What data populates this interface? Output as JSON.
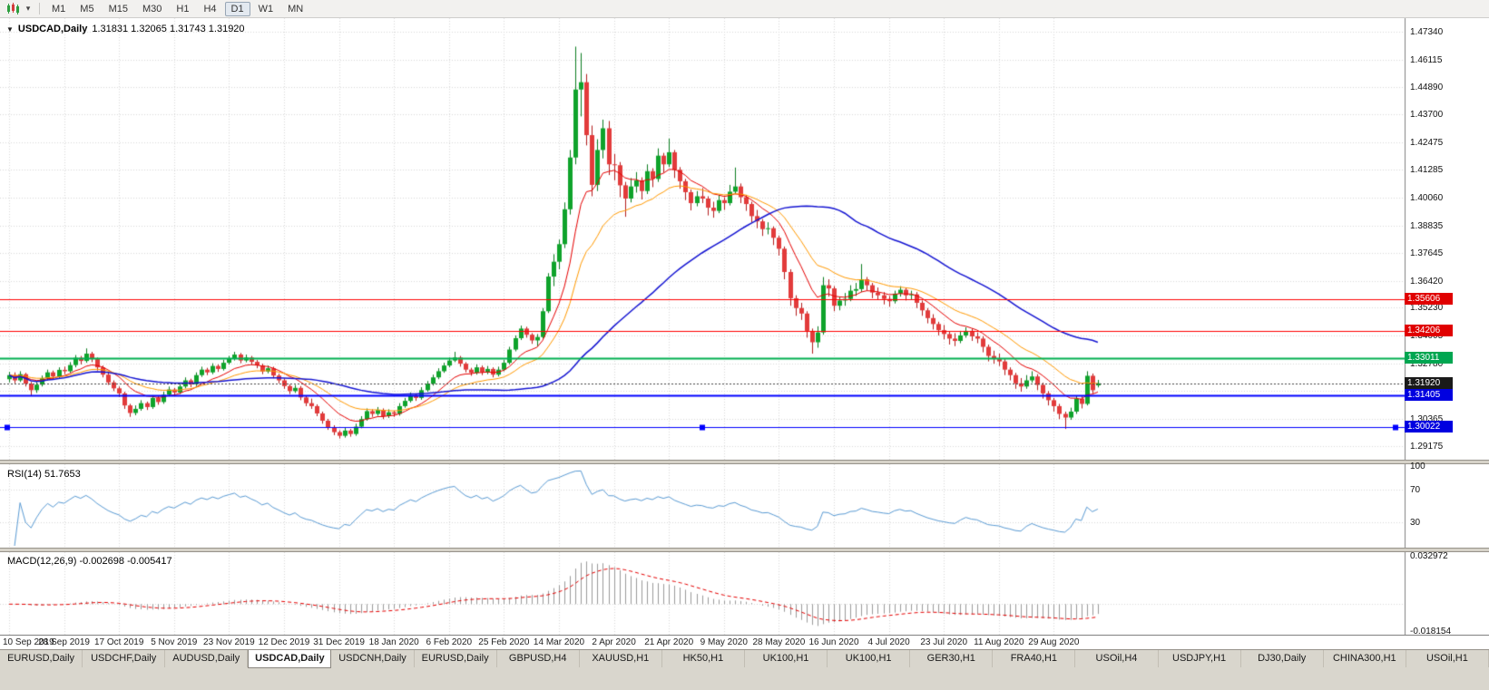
{
  "toolbar": {
    "chart_type_icon": "candlestick-chart-icon",
    "dropdown_glyph": "▾",
    "periods": [
      "M1",
      "M5",
      "M15",
      "M30",
      "H1",
      "H4",
      "D1",
      "W1",
      "MN"
    ],
    "active_period": "D1"
  },
  "chart": {
    "collapse_icon": "▼",
    "title": "USDCAD,Daily",
    "ohlc": "1.31831 1.32065 1.31743 1.31920"
  },
  "price_axis": {
    "labels": [
      "1.47340",
      "1.46115",
      "1.44890",
      "1.43700",
      "1.42475",
      "1.41285",
      "1.40060",
      "1.38835",
      "1.37645",
      "1.36420",
      "1.35230",
      "1.34005",
      "1.32780",
      "1.31590",
      "1.30365",
      "1.29175"
    ]
  },
  "price_tags": [
    {
      "text": "1.35606",
      "price": 1.35606,
      "color": "#e00000"
    },
    {
      "text": "1.34206",
      "price": 1.34206,
      "color": "#e00000"
    },
    {
      "text": "1.33011",
      "price": 1.33011,
      "color": "#00a651"
    },
    {
      "text": "1.31920",
      "price": 1.3192,
      "color": "#1a1a1a"
    },
    {
      "text": "1.31405",
      "price": 1.31405,
      "color": "#0000e0"
    },
    {
      "text": "1.30022",
      "price": 1.30022,
      "color": "#0000e0"
    }
  ],
  "sr_lines": [
    {
      "price": 1.35606,
      "color": "#ff0000",
      "width": 1,
      "selected": false
    },
    {
      "price": 1.34206,
      "color": "#ff0000",
      "width": 1,
      "selected": false
    },
    {
      "price": 1.33011,
      "color": "#00b050",
      "width": 2,
      "selected": false
    },
    {
      "price": 1.31405,
      "color": "#0000ff",
      "width": 2,
      "selected": false
    },
    {
      "price": 1.30022,
      "color": "#0000ff",
      "width": 1,
      "selected": true
    }
  ],
  "current_price": {
    "value": 1.3192,
    "label": "1.31920"
  },
  "rsi_pane": {
    "label": "RSI(14) 51.7653",
    "axis_labels": [
      "100",
      "70",
      "30"
    ],
    "levels": [
      70,
      30
    ]
  },
  "macd_pane": {
    "label": "MACD(12,26,9) -0.002698 -0.005417",
    "axis_labels": [
      "0.032972",
      "-0.018154"
    ]
  },
  "tabs": {
    "items": [
      "EURUSD,Daily",
      "USDCHF,Daily",
      "AUDUSD,Daily",
      "USDCAD,Daily",
      "USDCNH,Daily",
      "EURUSD,Daily",
      "GBPUSD,H4",
      "XAUUSD,H1",
      "HK50,H1",
      "UK100,H1",
      "UK100,H1",
      "GER30,H1",
      "FRA40,H1",
      "USOil,H4",
      "USDJPY,H1",
      "DJ30,Daily",
      "CHINA300,H1",
      "USOil,H1"
    ],
    "active_index": 3
  },
  "colors": {
    "bull": "#0fa32b",
    "bull_border": "#0a7d1f",
    "bear": "#e23b3b",
    "bear_border": "#b31d1d",
    "rsi": "#5a9bd4",
    "macd_hist": "#9a9a9a",
    "macd_signal": "#e60000",
    "grid": "#d9d9d9"
  },
  "chart_data": {
    "type": "candlestick",
    "symbol": "USDCAD",
    "timeframe": "Daily",
    "title": "USDCAD,Daily",
    "y_axis": {
      "min": 1.2885,
      "max": 1.4785
    },
    "x_labels": [
      "10 Sep 2019",
      "28 Sep 2019",
      "17 Oct 2019",
      "5 Nov 2019",
      "23 Nov 2019",
      "12 Dec 2019",
      "31 Dec 2019",
      "18 Jan 2020",
      "6 Feb 2020",
      "25 Feb 2020",
      "14 Mar 2020",
      "2 Apr 2020",
      "21 Apr 2020",
      "9 May 2020",
      "28 May 2020",
      "16 Jun 2020",
      "4 Jul 2020",
      "23 Jul 2020",
      "11 Aug 2020",
      "29 Aug 2020"
    ],
    "overlays": [
      {
        "name": "ma-fast",
        "type": "ema",
        "period": 10,
        "color": "#e60000",
        "width": 1
      },
      {
        "name": "ma-mid",
        "type": "ema",
        "period": 20,
        "color": "#ff9900",
        "width": 1
      },
      {
        "name": "ma-slow",
        "type": "sma",
        "period": 50,
        "color": "#1414d2",
        "width": 1.5
      }
    ],
    "indicators": [
      {
        "name": "RSI",
        "period": 14,
        "current": 51.7653
      },
      {
        "name": "MACD",
        "fast": 12,
        "slow": 26,
        "signal_period": 9,
        "current": -0.002698,
        "signal_current": -0.005417
      }
    ],
    "candles": [
      [
        1.321,
        1.3242,
        1.3196,
        1.3228
      ],
      [
        1.3228,
        1.324,
        1.3192,
        1.3205
      ],
      [
        1.3205,
        1.3245,
        1.3198,
        1.3232
      ],
      [
        1.3232,
        1.3238,
        1.3178,
        1.319
      ],
      [
        1.319,
        1.3198,
        1.3136,
        1.3162
      ],
      [
        1.3162,
        1.3198,
        1.315,
        1.3186
      ],
      [
        1.3186,
        1.3226,
        1.3178,
        1.3214
      ],
      [
        1.3214,
        1.3252,
        1.3205,
        1.324
      ],
      [
        1.324,
        1.3248,
        1.321,
        1.3222
      ],
      [
        1.3222,
        1.3262,
        1.3214,
        1.3251
      ],
      [
        1.3251,
        1.3265,
        1.3232,
        1.3245
      ],
      [
        1.3245,
        1.3285,
        1.3238,
        1.3272
      ],
      [
        1.3272,
        1.3316,
        1.3262,
        1.3304
      ],
      [
        1.3304,
        1.3312,
        1.3275,
        1.329
      ],
      [
        1.329,
        1.3345,
        1.3282,
        1.3322
      ],
      [
        1.3322,
        1.333,
        1.3285,
        1.3298
      ],
      [
        1.3298,
        1.3305,
        1.3248,
        1.3262
      ],
      [
        1.3262,
        1.327,
        1.3218,
        1.323
      ],
      [
        1.323,
        1.3242,
        1.3185,
        1.3196
      ],
      [
        1.3196,
        1.3205,
        1.3158,
        1.317
      ],
      [
        1.317,
        1.3178,
        1.3132,
        1.3148
      ],
      [
        1.3148,
        1.3155,
        1.308,
        1.3095
      ],
      [
        1.3095,
        1.3102,
        1.3045,
        1.3062
      ],
      [
        1.3062,
        1.3095,
        1.3052,
        1.308
      ],
      [
        1.308,
        1.3118,
        1.3072,
        1.3105
      ],
      [
        1.3105,
        1.3112,
        1.3075,
        1.3088
      ],
      [
        1.3088,
        1.314,
        1.308,
        1.3128
      ],
      [
        1.3128,
        1.3135,
        1.3098,
        1.311
      ],
      [
        1.311,
        1.3155,
        1.3102,
        1.3142
      ],
      [
        1.3142,
        1.3178,
        1.3135,
        1.3165
      ],
      [
        1.3165,
        1.3172,
        1.3138,
        1.3152
      ],
      [
        1.3152,
        1.319,
        1.3145,
        1.3178
      ],
      [
        1.3178,
        1.3218,
        1.317,
        1.3205
      ],
      [
        1.3205,
        1.3212,
        1.3175,
        1.3188
      ],
      [
        1.3188,
        1.324,
        1.318,
        1.3228
      ],
      [
        1.3228,
        1.3265,
        1.322,
        1.3252
      ],
      [
        1.3252,
        1.326,
        1.3228,
        1.324
      ],
      [
        1.324,
        1.328,
        1.3232,
        1.3268
      ],
      [
        1.3268,
        1.3275,
        1.3242,
        1.3255
      ],
      [
        1.3255,
        1.3295,
        1.3248,
        1.3282
      ],
      [
        1.3282,
        1.3312,
        1.3274,
        1.33
      ],
      [
        1.33,
        1.333,
        1.3292,
        1.3318
      ],
      [
        1.3318,
        1.3325,
        1.328,
        1.3292
      ],
      [
        1.3292,
        1.3318,
        1.3284,
        1.3305
      ],
      [
        1.3305,
        1.3312,
        1.3274,
        1.3286
      ],
      [
        1.3286,
        1.3294,
        1.3258,
        1.327
      ],
      [
        1.327,
        1.3278,
        1.3232,
        1.3244
      ],
      [
        1.3244,
        1.327,
        1.3236,
        1.3258
      ],
      [
        1.3258,
        1.3265,
        1.3214,
        1.3226
      ],
      [
        1.3226,
        1.3234,
        1.3192,
        1.3205
      ],
      [
        1.3205,
        1.3213,
        1.3168,
        1.318
      ],
      [
        1.318,
        1.3188,
        1.3145,
        1.3158
      ],
      [
        1.3158,
        1.3185,
        1.315,
        1.3172
      ],
      [
        1.3172,
        1.318,
        1.3118,
        1.313
      ],
      [
        1.313,
        1.3138,
        1.3092,
        1.3105
      ],
      [
        1.3105,
        1.3125,
        1.308,
        1.3092
      ],
      [
        1.3092,
        1.31,
        1.3048,
        1.306
      ],
      [
        1.306,
        1.3068,
        1.3015,
        1.3028
      ],
      [
        1.3028,
        1.3036,
        1.2988,
        1.3
      ],
      [
        1.3,
        1.3008,
        1.2965,
        1.2978
      ],
      [
        1.2978,
        1.2986,
        1.295,
        1.2962
      ],
      [
        1.2962,
        1.2998,
        1.2954,
        1.2985
      ],
      [
        1.2985,
        1.2992,
        1.2958,
        1.297
      ],
      [
        1.297,
        1.3015,
        1.2962,
        1.3002
      ],
      [
        1.3002,
        1.3048,
        1.2995,
        1.3035
      ],
      [
        1.3035,
        1.3082,
        1.3028,
        1.307
      ],
      [
        1.307,
        1.3078,
        1.3045,
        1.3058
      ],
      [
        1.3058,
        1.3088,
        1.305,
        1.3075
      ],
      [
        1.3075,
        1.3082,
        1.3035,
        1.3048
      ],
      [
        1.3048,
        1.3078,
        1.304,
        1.3065
      ],
      [
        1.3065,
        1.3072,
        1.3045,
        1.3058
      ],
      [
        1.3058,
        1.3105,
        1.305,
        1.3092
      ],
      [
        1.3092,
        1.3128,
        1.3085,
        1.3115
      ],
      [
        1.3115,
        1.3152,
        1.3108,
        1.314
      ],
      [
        1.314,
        1.3148,
        1.3115,
        1.3128
      ],
      [
        1.3128,
        1.3175,
        1.312,
        1.3162
      ],
      [
        1.3162,
        1.3202,
        1.3155,
        1.319
      ],
      [
        1.319,
        1.323,
        1.3182,
        1.3218
      ],
      [
        1.3218,
        1.3258,
        1.321,
        1.3245
      ],
      [
        1.3245,
        1.3282,
        1.3238,
        1.327
      ],
      [
        1.327,
        1.3305,
        1.3262,
        1.3292
      ],
      [
        1.3292,
        1.333,
        1.3285,
        1.3305
      ],
      [
        1.3305,
        1.3312,
        1.3265,
        1.3278
      ],
      [
        1.3278,
        1.3285,
        1.324,
        1.3252
      ],
      [
        1.3252,
        1.326,
        1.3225,
        1.3238
      ],
      [
        1.3238,
        1.3275,
        1.323,
        1.3262
      ],
      [
        1.3262,
        1.327,
        1.3228,
        1.324
      ],
      [
        1.324,
        1.3268,
        1.3232,
        1.3255
      ],
      [
        1.3255,
        1.3262,
        1.3218,
        1.323
      ],
      [
        1.323,
        1.3265,
        1.3222,
        1.3252
      ],
      [
        1.3252,
        1.3295,
        1.3245,
        1.3282
      ],
      [
        1.3282,
        1.3352,
        1.3275,
        1.334
      ],
      [
        1.334,
        1.3402,
        1.3332,
        1.339
      ],
      [
        1.339,
        1.3445,
        1.3382,
        1.3432
      ],
      [
        1.3432,
        1.344,
        1.3392,
        1.3405
      ],
      [
        1.3405,
        1.3412,
        1.3365,
        1.338
      ],
      [
        1.338,
        1.3408,
        1.3355,
        1.3395
      ],
      [
        1.3395,
        1.3522,
        1.3388,
        1.3508
      ],
      [
        1.3508,
        1.3675,
        1.35,
        1.366
      ],
      [
        1.366,
        1.3758,
        1.3618,
        1.3725
      ],
      [
        1.3725,
        1.3822,
        1.3692,
        1.3802
      ],
      [
        1.3802,
        1.3985,
        1.3785,
        1.3955
      ],
      [
        1.3955,
        1.4215,
        1.3932,
        1.4182
      ],
      [
        1.4182,
        1.4668,
        1.4152,
        1.448
      ],
      [
        1.448,
        1.464,
        1.4362,
        1.4512
      ],
      [
        1.4512,
        1.4548,
        1.4235,
        1.428
      ],
      [
        1.428,
        1.4322,
        1.4012,
        1.4062
      ],
      [
        1.4062,
        1.4262,
        1.4035,
        1.4215
      ],
      [
        1.4215,
        1.4348,
        1.4178,
        1.431
      ],
      [
        1.431,
        1.4342,
        1.4105,
        1.4152
      ],
      [
        1.4152,
        1.4198,
        1.4082,
        1.4148
      ],
      [
        1.4148,
        1.4162,
        1.4008,
        1.406
      ],
      [
        1.406,
        1.4075,
        1.3922,
        1.4002
      ],
      [
        1.4002,
        1.4092,
        1.3985,
        1.4055
      ],
      [
        1.4055,
        1.4118,
        1.4028,
        1.4082
      ],
      [
        1.4082,
        1.4095,
        1.3998,
        1.4035
      ],
      [
        1.4035,
        1.4152,
        1.4022,
        1.4122
      ],
      [
        1.4122,
        1.4135,
        1.4052,
        1.4088
      ],
      [
        1.4088,
        1.4222,
        1.4075,
        1.419
      ],
      [
        1.419,
        1.4202,
        1.4115,
        1.4152
      ],
      [
        1.4152,
        1.4265,
        1.414,
        1.4205
      ],
      [
        1.4205,
        1.4215,
        1.4092,
        1.4128
      ],
      [
        1.4128,
        1.414,
        1.4045,
        1.4078
      ],
      [
        1.4078,
        1.4088,
        1.3995,
        1.403
      ],
      [
        1.403,
        1.4042,
        1.395,
        1.3982
      ],
      [
        1.3982,
        1.4035,
        1.3968,
        1.4012
      ],
      [
        1.4012,
        1.4048,
        1.3982,
        1.4002
      ],
      [
        1.4002,
        1.4012,
        1.3928,
        1.3962
      ],
      [
        1.3962,
        1.3988,
        1.3918,
        1.3948
      ],
      [
        1.3948,
        1.4018,
        1.3938,
        1.3995
      ],
      [
        1.3995,
        1.4008,
        1.3952,
        1.3982
      ],
      [
        1.3982,
        1.4062,
        1.3972,
        1.4032
      ],
      [
        1.4032,
        1.4138,
        1.4022,
        1.4055
      ],
      [
        1.4055,
        1.4068,
        1.3982,
        1.4008
      ],
      [
        1.4008,
        1.4018,
        1.3948,
        1.3978
      ],
      [
        1.3978,
        1.3988,
        1.3898,
        1.3925
      ],
      [
        1.3925,
        1.3952,
        1.3872,
        1.3902
      ],
      [
        1.3902,
        1.3912,
        1.3838,
        1.3868
      ],
      [
        1.3868,
        1.3898,
        1.3845,
        1.3872
      ],
      [
        1.3872,
        1.388,
        1.3798,
        1.383
      ],
      [
        1.383,
        1.384,
        1.3752,
        1.3782
      ],
      [
        1.3782,
        1.3792,
        1.3648,
        1.368
      ],
      [
        1.368,
        1.3692,
        1.3532,
        1.3565
      ],
      [
        1.3565,
        1.3578,
        1.3488,
        1.3522
      ],
      [
        1.3522,
        1.3545,
        1.347,
        1.3498
      ],
      [
        1.3498,
        1.3508,
        1.3392,
        1.3422
      ],
      [
        1.3422,
        1.3432,
        1.3322,
        1.3372
      ],
      [
        1.3372,
        1.3442,
        1.3348,
        1.3415
      ],
      [
        1.3415,
        1.3658,
        1.3405,
        1.3622
      ],
      [
        1.3622,
        1.3648,
        1.3572,
        1.3608
      ],
      [
        1.3608,
        1.3618,
        1.3508,
        1.3532
      ],
      [
        1.3532,
        1.3572,
        1.3512,
        1.3555
      ],
      [
        1.3555,
        1.3588,
        1.3532,
        1.3562
      ],
      [
        1.3562,
        1.3622,
        1.3552,
        1.3598
      ],
      [
        1.3598,
        1.3632,
        1.3575,
        1.3605
      ],
      [
        1.3605,
        1.3715,
        1.3592,
        1.3648
      ],
      [
        1.3648,
        1.3658,
        1.3598,
        1.3622
      ],
      [
        1.3622,
        1.3632,
        1.3565,
        1.359
      ],
      [
        1.359,
        1.3612,
        1.3558,
        1.3578
      ],
      [
        1.3578,
        1.3592,
        1.3538,
        1.3562
      ],
      [
        1.3562,
        1.3575,
        1.3528,
        1.3552
      ],
      [
        1.3552,
        1.3598,
        1.3542,
        1.3585
      ],
      [
        1.3585,
        1.3618,
        1.3572,
        1.3602
      ],
      [
        1.3602,
        1.3612,
        1.3555,
        1.3578
      ],
      [
        1.3578,
        1.3598,
        1.3558,
        1.3582
      ],
      [
        1.3582,
        1.3592,
        1.3522,
        1.3545
      ],
      [
        1.3545,
        1.3555,
        1.3488,
        1.3512
      ],
      [
        1.3512,
        1.3522,
        1.3455,
        1.3478
      ],
      [
        1.3478,
        1.3495,
        1.3428,
        1.3452
      ],
      [
        1.3452,
        1.3462,
        1.3402,
        1.3425
      ],
      [
        1.3425,
        1.3448,
        1.3385,
        1.3408
      ],
      [
        1.3408,
        1.3418,
        1.3362,
        1.3388
      ],
      [
        1.3388,
        1.3412,
        1.3355,
        1.3378
      ],
      [
        1.3378,
        1.3422,
        1.3368,
        1.3402
      ],
      [
        1.3402,
        1.3438,
        1.3392,
        1.3422
      ],
      [
        1.3422,
        1.3432,
        1.3378,
        1.3398
      ],
      [
        1.3398,
        1.3415,
        1.3368,
        1.3388
      ],
      [
        1.3388,
        1.3398,
        1.3328,
        1.3352
      ],
      [
        1.3352,
        1.3362,
        1.3288,
        1.3312
      ],
      [
        1.3312,
        1.3335,
        1.3278,
        1.3298
      ],
      [
        1.3298,
        1.3322,
        1.3268,
        1.3288
      ],
      [
        1.3288,
        1.3298,
        1.3228,
        1.3252
      ],
      [
        1.3252,
        1.3262,
        1.3205,
        1.3228
      ],
      [
        1.3228,
        1.3238,
        1.3168,
        1.3192
      ],
      [
        1.3192,
        1.3215,
        1.3155,
        1.3178
      ],
      [
        1.3178,
        1.3228,
        1.3168,
        1.3205
      ],
      [
        1.3205,
        1.3245,
        1.3195,
        1.3222
      ],
      [
        1.3222,
        1.3232,
        1.3162,
        1.3185
      ],
      [
        1.3185,
        1.3195,
        1.3125,
        1.3148
      ],
      [
        1.3148,
        1.3158,
        1.3095,
        1.3118
      ],
      [
        1.3118,
        1.3128,
        1.3068,
        1.3092
      ],
      [
        1.3092,
        1.3102,
        1.3035,
        1.3058
      ],
      [
        1.3058,
        1.3068,
        1.2992,
        1.3042
      ],
      [
        1.3042,
        1.3085,
        1.3032,
        1.3068
      ],
      [
        1.3068,
        1.3138,
        1.3058,
        1.3125
      ],
      [
        1.3125,
        1.3135,
        1.3082,
        1.3102
      ],
      [
        1.3102,
        1.3245,
        1.3095,
        1.3225
      ],
      [
        1.3225,
        1.3235,
        1.3148,
        1.3162
      ],
      [
        1.3183,
        1.3207,
        1.3174,
        1.3192
      ]
    ]
  }
}
